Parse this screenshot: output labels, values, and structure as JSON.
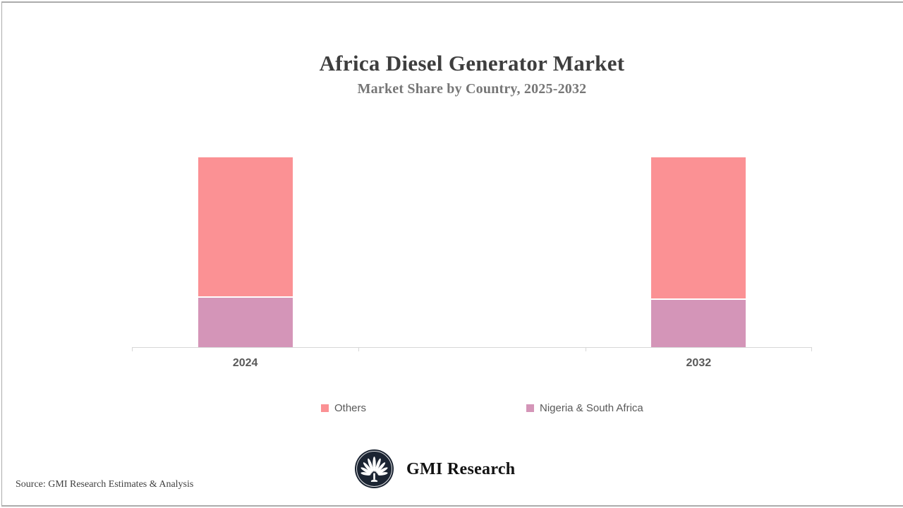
{
  "header": {
    "title": "Africa Diesel Generator Market",
    "subtitle": "Market Share by Country, 2025-2032"
  },
  "chart_data": {
    "type": "bar",
    "variant": "stacked-column",
    "title": "Africa Diesel Generator Market",
    "subtitle": "Market Share by Country, 2025-2032",
    "categories": [
      "2024",
      "2032"
    ],
    "series": [
      {
        "name": "Others",
        "color": "#FB9194",
        "values": [
          74,
          75
        ]
      },
      {
        "name": "Nigeria & South Africa",
        "color": "#D495B8",
        "values": [
          26,
          25
        ]
      }
    ],
    "value_labels_shown": false,
    "units": "percent share (estimated from bar heights)",
    "ylim": [
      0,
      100
    ],
    "grid": false,
    "legend_position": "bottom",
    "layout": {
      "x_axis_slots": 3,
      "bar_slot_indices": [
        0,
        2
      ],
      "stack_order_bottom_to_top": [
        "Nigeria & South Africa",
        "Others"
      ],
      "segment_gap_color": "#ffffff"
    }
  },
  "colors": {
    "axis": "#d7d7d7",
    "title_text": "#3e3e3e",
    "subtitle_text": "#767676",
    "label_text": "#595959",
    "logo_navy": "#1b2432",
    "frame_border": "#ababab"
  },
  "footer": {
    "source": "Source: GMI Research Estimates & Analysis",
    "brand": "GMI Research"
  },
  "icons": {
    "logo": "palm-fan-circle-icon"
  }
}
